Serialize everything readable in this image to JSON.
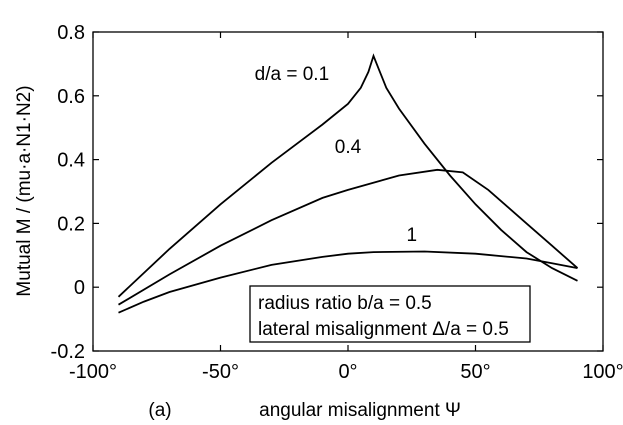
{
  "chart_data": {
    "type": "line",
    "xlabel": "angular misalignment  Ψ",
    "ylabel": "Mutual  M / (mu·a·N1·N2)",
    "panel_label": "(a)",
    "xlim": [
      -100,
      100
    ],
    "ylim": [
      -0.2,
      0.8
    ],
    "x_ticks": [
      -100,
      -50,
      0,
      50,
      100
    ],
    "x_tick_labels": [
      "-100°",
      "-50°",
      "0°",
      "50°",
      "100°"
    ],
    "y_ticks": [
      -0.2,
      0,
      0.2,
      0.4,
      0.6,
      0.8
    ],
    "y_tick_labels": [
      "-0.2",
      "0",
      "0.2",
      "0.4",
      "0.6",
      "0.8"
    ],
    "grid": false,
    "series": [
      {
        "name": "d/a = 0.1",
        "label_at": [
          -22,
          0.65
        ],
        "x": [
          -90,
          -70,
          -50,
          -30,
          -10,
          0,
          5,
          8,
          10,
          12,
          15,
          20,
          30,
          40,
          50,
          60,
          70,
          80,
          90
        ],
        "y": [
          -0.03,
          0.12,
          0.26,
          0.39,
          0.51,
          0.575,
          0.625,
          0.675,
          0.725,
          0.685,
          0.625,
          0.56,
          0.45,
          0.35,
          0.26,
          0.18,
          0.11,
          0.06,
          0.02
        ]
      },
      {
        "name": "0.4",
        "label_at": [
          0,
          0.42
        ],
        "x": [
          -90,
          -70,
          -50,
          -30,
          -10,
          0,
          20,
          35,
          45,
          55,
          70,
          80,
          90
        ],
        "y": [
          -0.055,
          0.04,
          0.13,
          0.21,
          0.28,
          0.305,
          0.35,
          0.368,
          0.36,
          0.305,
          0.2,
          0.13,
          0.06
        ]
      },
      {
        "name": "1",
        "label_at": [
          25,
          0.145
        ],
        "x": [
          -90,
          -80,
          -70,
          -50,
          -30,
          -10,
          0,
          10,
          30,
          50,
          70,
          80,
          90
        ],
        "y": [
          -0.08,
          -0.045,
          -0.015,
          0.03,
          0.07,
          0.095,
          0.105,
          0.11,
          0.112,
          0.105,
          0.09,
          0.075,
          0.06
        ]
      }
    ],
    "annotation_lines": [
      "radius ratio  b/a = 0.5",
      "lateral misalignment  Δ/a = 0.5"
    ]
  }
}
